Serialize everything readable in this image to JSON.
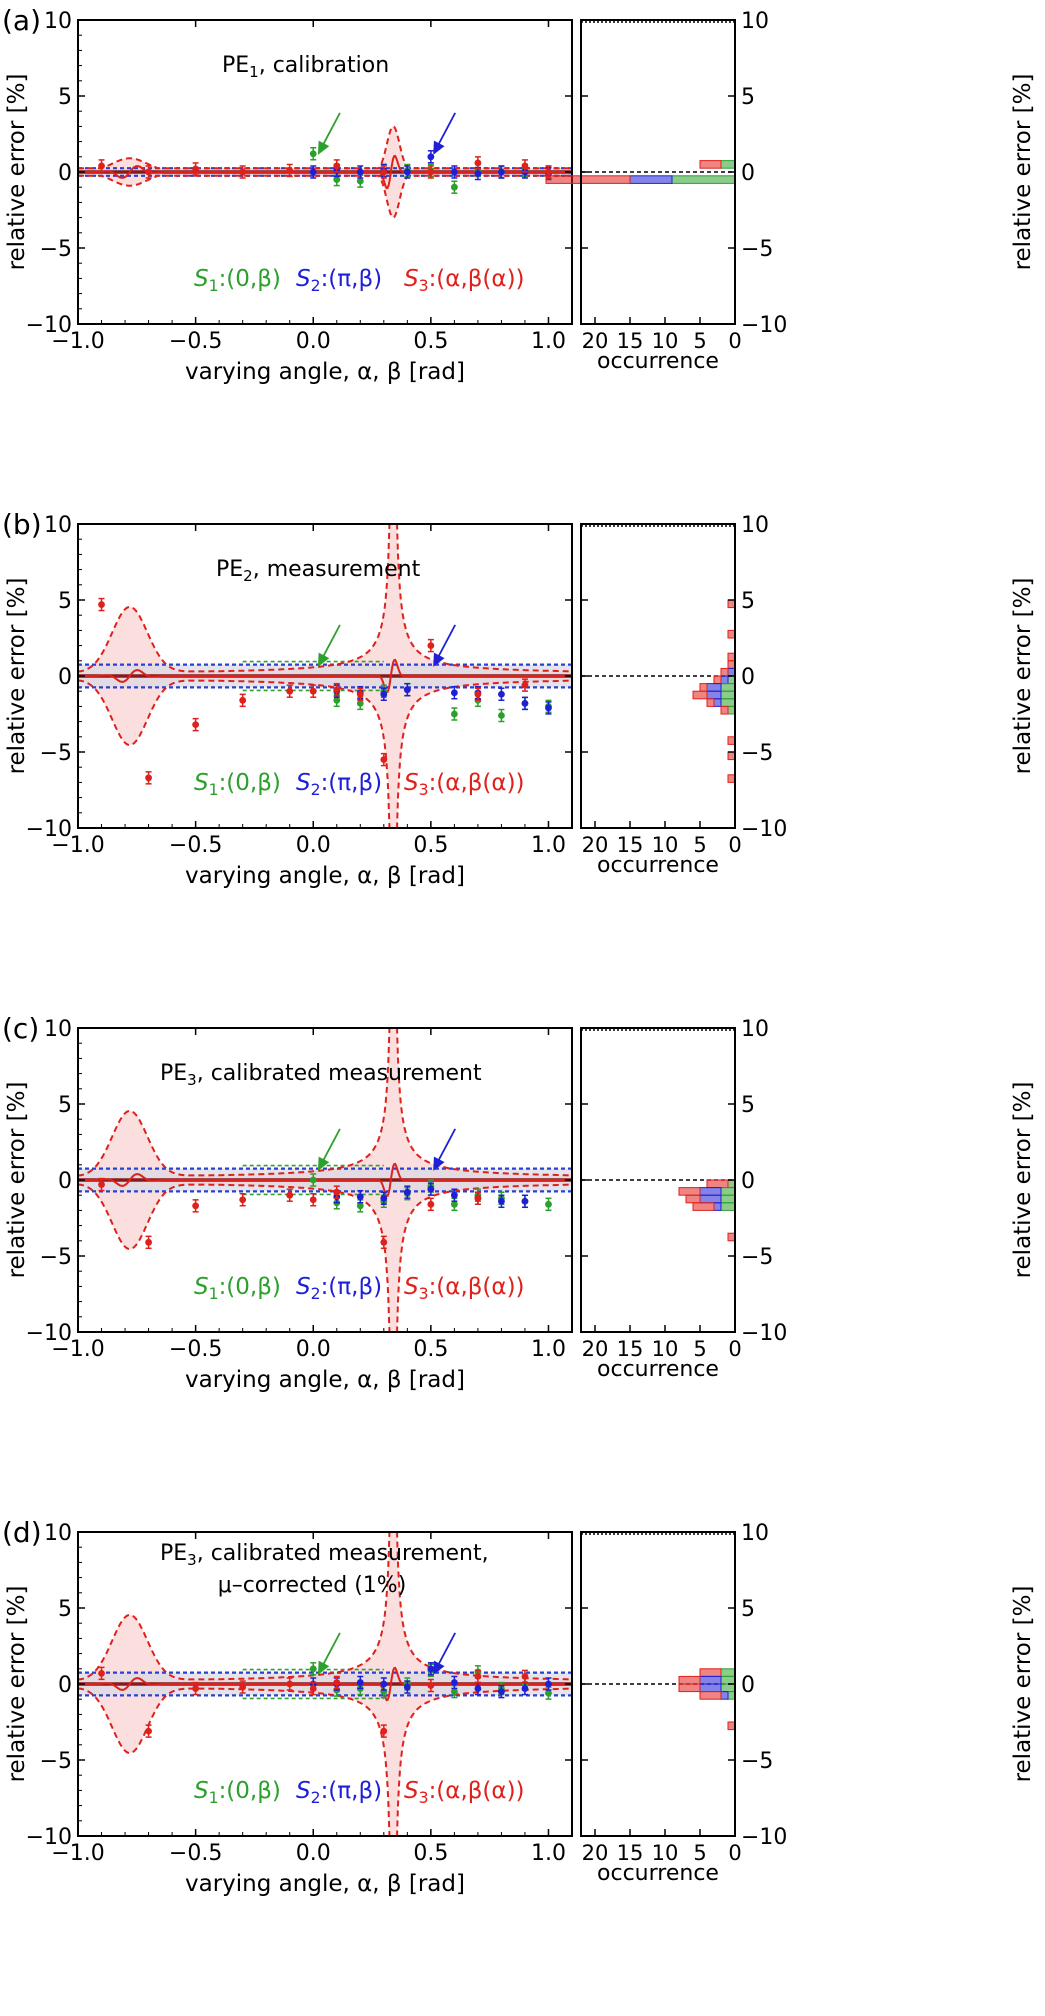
{
  "colors": {
    "s1": "#2ca02c",
    "s2": "#1f1fd6",
    "s3": "#e0201b",
    "s3_fill": "#fbdede",
    "band_fill": "#d9d9e4",
    "band_line": "#2b3fd0"
  },
  "axes": {
    "xlabel": "varying angle, α, β [rad]",
    "ylabel": "relative error [%]",
    "hist_xlabel": "occurrence",
    "x_ticks": [
      "−1.0",
      "−0.5",
      "0.0",
      "0.5",
      "1.0"
    ],
    "y_ticks": [
      "−10",
      "−5",
      "0",
      "5",
      "10"
    ],
    "hist_ticks": [
      "20",
      "15",
      "10",
      "5",
      "0"
    ]
  },
  "legend": {
    "s1": {
      "sym": "S",
      "sub": "1",
      "rest": ":(0,β)"
    },
    "s2": {
      "sym": "S",
      "sub": "2",
      "rest": ":(π,β)"
    },
    "s3": {
      "sym": "S",
      "sub": "3",
      "rest": ":(α,β(α))"
    }
  },
  "chart_data": [
    {
      "panel": "(a)",
      "type": "scatter",
      "title": {
        "pre": "PE",
        "sub": "1",
        "post": ", calibration"
      },
      "title2": "",
      "xlim": [
        -1.0,
        1.1
      ],
      "ylim": [
        -10,
        10
      ],
      "series": [
        {
          "name": "S1:(0,β)",
          "color": "#2ca02c",
          "points": [
            [
              0.0,
              1.2
            ],
            [
              0.1,
              -0.5
            ],
            [
              0.2,
              -0.6
            ],
            [
              0.3,
              0.1
            ],
            [
              0.4,
              0.1
            ],
            [
              0.5,
              0.1
            ],
            [
              0.6,
              -1.0
            ],
            [
              0.7,
              0.1
            ],
            [
              0.8,
              0.0
            ],
            [
              0.9,
              0.1
            ],
            [
              1.0,
              0.0
            ]
          ]
        },
        {
          "name": "S2:(π,β)",
          "color": "#1f1fd6",
          "points": [
            [
              0.0,
              0.0
            ],
            [
              0.1,
              0.1
            ],
            [
              0.2,
              0.0
            ],
            [
              0.3,
              0.1
            ],
            [
              0.4,
              0.0
            ],
            [
              0.5,
              1.0
            ],
            [
              0.6,
              0.0
            ],
            [
              0.7,
              -0.1
            ],
            [
              0.8,
              0.0
            ],
            [
              0.9,
              0.0
            ],
            [
              1.0,
              -0.1
            ]
          ]
        },
        {
          "name": "S3:(α,β(α))",
          "color": "#e0201b",
          "points": [
            [
              -0.9,
              0.4
            ],
            [
              -0.7,
              0.0
            ],
            [
              -0.5,
              0.2
            ],
            [
              -0.3,
              0.0
            ],
            [
              -0.1,
              0.1
            ],
            [
              0.1,
              0.4
            ],
            [
              0.3,
              0.0
            ],
            [
              0.5,
              0.0
            ],
            [
              0.7,
              0.6
            ],
            [
              0.9,
              0.4
            ],
            [
              1.0,
              0.0
            ]
          ]
        }
      ],
      "histogram": {
        "bins": [
          0.5,
          -0.5
        ],
        "s1": [
          2,
          9
        ],
        "s2": [
          0,
          6
        ],
        "s3": [
          3,
          12
        ]
      }
    },
    {
      "panel": "(b)",
      "type": "scatter",
      "title": {
        "pre": "PE",
        "sub": "2",
        "post": ", measurement"
      },
      "title2": "",
      "xlim": [
        -1.0,
        1.1
      ],
      "ylim": [
        -10,
        10
      ],
      "series": [
        {
          "name": "S1:(0,β)",
          "color": "#2ca02c",
          "points": [
            [
              0.1,
              -1.6
            ],
            [
              0.2,
              -1.8
            ],
            [
              0.3,
              -1.0
            ],
            [
              0.4,
              -0.9
            ],
            [
              0.6,
              -2.5
            ],
            [
              0.7,
              -1.6
            ],
            [
              0.8,
              -2.6
            ],
            [
              0.9,
              -1.8
            ],
            [
              1.0,
              -2.0
            ]
          ]
        },
        {
          "name": "S2:(π,β)",
          "color": "#1f1fd6",
          "points": [
            [
              0.1,
              -1.0
            ],
            [
              0.2,
              -1.1
            ],
            [
              0.3,
              -1.2
            ],
            [
              0.4,
              -0.9
            ],
            [
              0.6,
              -1.1
            ],
            [
              0.7,
              -1.1
            ],
            [
              0.8,
              -1.2
            ],
            [
              0.9,
              -1.8
            ],
            [
              1.0,
              -2.1
            ]
          ]
        },
        {
          "name": "S3:(α,β(α))",
          "color": "#e0201b",
          "points": [
            [
              -0.9,
              4.7
            ],
            [
              -0.7,
              -6.7
            ],
            [
              -0.5,
              -3.2
            ],
            [
              -0.3,
              -1.6
            ],
            [
              -0.1,
              -1.0
            ],
            [
              0.0,
              -1.0
            ],
            [
              0.1,
              -0.9
            ],
            [
              0.2,
              -1.2
            ],
            [
              0.3,
              -5.5
            ],
            [
              0.5,
              2.0
            ],
            [
              0.7,
              -1.2
            ],
            [
              0.9,
              -0.6
            ]
          ]
        }
      ],
      "histogram": {
        "bins": [
          4.75,
          2.75,
          1.25,
          0.75,
          0.25,
          -0.25,
          -0.75,
          -1.25,
          -1.75,
          -2.25,
          -4.25,
          -5.25,
          -6.75
        ],
        "s1": [
          0,
          0,
          0,
          0,
          0,
          1,
          2,
          2,
          2,
          1,
          0,
          0,
          0
        ],
        "s2": [
          0,
          0,
          0,
          0,
          1,
          1,
          2,
          2,
          1,
          0,
          0,
          0,
          0
        ],
        "s3": [
          1,
          1,
          1,
          1,
          1,
          1,
          1,
          2,
          1,
          1,
          1,
          1,
          1
        ]
      }
    },
    {
      "panel": "(c)",
      "type": "scatter",
      "title": {
        "pre": "PE",
        "sub": "3",
        "post": ", calibrated measurement"
      },
      "title2": "",
      "xlim": [
        -1.0,
        1.1
      ],
      "ylim": [
        -10,
        10
      ],
      "series": [
        {
          "name": "S1:(0,β)",
          "color": "#2ca02c",
          "points": [
            [
              0.0,
              0.0
            ],
            [
              0.1,
              -1.5
            ],
            [
              0.2,
              -1.7
            ],
            [
              0.3,
              -1.4
            ],
            [
              0.4,
              -0.9
            ],
            [
              0.5,
              -0.4
            ],
            [
              0.6,
              -1.6
            ],
            [
              0.7,
              -1.0
            ],
            [
              0.8,
              -1.2
            ],
            [
              0.9,
              -1.4
            ],
            [
              1.0,
              -1.6
            ]
          ]
        },
        {
          "name": "S2:(π,β)",
          "color": "#1f1fd6",
          "points": [
            [
              0.1,
              -1.1
            ],
            [
              0.2,
              -1.1
            ],
            [
              0.3,
              -1.2
            ],
            [
              0.4,
              -0.8
            ],
            [
              0.5,
              -0.6
            ],
            [
              0.6,
              -1.0
            ],
            [
              0.7,
              -1.2
            ],
            [
              0.8,
              -1.4
            ],
            [
              0.9,
              -1.4
            ]
          ]
        },
        {
          "name": "S3:(α,β(α))",
          "color": "#e0201b",
          "points": [
            [
              -0.9,
              -0.3
            ],
            [
              -0.7,
              -4.1
            ],
            [
              -0.5,
              -1.7
            ],
            [
              -0.3,
              -1.3
            ],
            [
              -0.1,
              -1.0
            ],
            [
              0.0,
              -1.3
            ],
            [
              0.1,
              -0.8
            ],
            [
              0.3,
              -4.1
            ],
            [
              0.5,
              -1.6
            ],
            [
              0.7,
              -1.2
            ]
          ]
        }
      ],
      "histogram": {
        "bins": [
          -0.25,
          -0.75,
          -1.25,
          -1.75,
          -3.75
        ],
        "s1": [
          1,
          2,
          2,
          2,
          0
        ],
        "s2": [
          0,
          3,
          3,
          1,
          0
        ],
        "s3": [
          3,
          3,
          2,
          3,
          1
        ]
      }
    },
    {
      "panel": "(d)",
      "type": "scatter",
      "title": {
        "pre": "PE",
        "sub": "3",
        "post": ", calibrated measurement,"
      },
      "title2": "μ–corrected (1%)",
      "xlim": [
        -1.0,
        1.1
      ],
      "ylim": [
        -10,
        10
      ],
      "series": [
        {
          "name": "S1:(0,β)",
          "color": "#2ca02c",
          "points": [
            [
              0.0,
              1.0
            ],
            [
              0.1,
              -0.4
            ],
            [
              0.2,
              -0.3
            ],
            [
              0.3,
              -0.5
            ],
            [
              0.4,
              0.0
            ],
            [
              0.5,
              0.9
            ],
            [
              0.6,
              -0.5
            ],
            [
              0.7,
              0.8
            ],
            [
              0.8,
              -0.3
            ],
            [
              0.9,
              0.0
            ],
            [
              1.0,
              -0.6
            ]
          ]
        },
        {
          "name": "S2:(π,β)",
          "color": "#1f1fd6",
          "points": [
            [
              0.0,
              0.0
            ],
            [
              0.1,
              0.0
            ],
            [
              0.2,
              0.1
            ],
            [
              0.3,
              0.0
            ],
            [
              0.4,
              -0.2
            ],
            [
              0.5,
              1.0
            ],
            [
              0.6,
              0.1
            ],
            [
              0.7,
              -0.3
            ],
            [
              0.8,
              -0.5
            ],
            [
              0.9,
              -0.3
            ],
            [
              1.0,
              0.0
            ]
          ]
        },
        {
          "name": "S3:(α,β(α))",
          "color": "#e0201b",
          "points": [
            [
              -0.9,
              0.7
            ],
            [
              -0.7,
              -3.1
            ],
            [
              -0.5,
              -0.3
            ],
            [
              -0.3,
              -0.2
            ],
            [
              -0.1,
              0.0
            ],
            [
              0.0,
              -0.3
            ],
            [
              0.1,
              0.1
            ],
            [
              0.3,
              -3.1
            ],
            [
              0.5,
              -0.1
            ],
            [
              0.7,
              0.5
            ],
            [
              0.9,
              0.5
            ]
          ]
        }
      ],
      "histogram": {
        "bins": [
          0.75,
          0.25,
          -0.25,
          -0.75,
          -2.75
        ],
        "s1": [
          2,
          2,
          2,
          1,
          0
        ],
        "s2": [
          0,
          3,
          3,
          1,
          0
        ],
        "s3": [
          3,
          3,
          3,
          3,
          1
        ]
      }
    }
  ]
}
